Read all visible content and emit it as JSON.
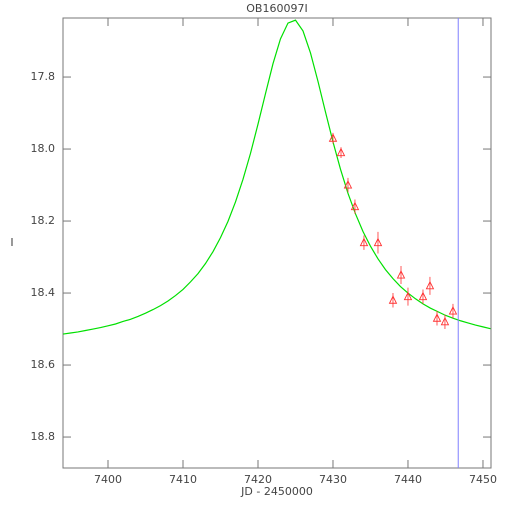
{
  "chart_data": {
    "type": "scatter",
    "title": "OB160097I",
    "xlabel": "JD - 2450000",
    "ylabel": "I",
    "xlim": [
      7394,
      7451.07
    ],
    "ylim": [
      18.886,
      17.636
    ],
    "xticks": [
      7400,
      7410,
      7420,
      7430,
      7440,
      7450
    ],
    "yticks": [
      17.8,
      {
        "value": 18,
        "label": "18.0"
      },
      18.2,
      18.4,
      18.6,
      18.8
    ],
    "points": {
      "color": "#ff3030",
      "x": [
        7430.0,
        7431.07,
        7432.0,
        7432.93,
        7434.13,
        7436.0,
        7438.0,
        7439.07,
        7440.0,
        7442.0,
        7442.93,
        7443.87,
        7444.93,
        7446.0
      ],
      "values": [
        17.97,
        18.01,
        18.1,
        18.16,
        18.26,
        18.26,
        18.42,
        18.35,
        18.41,
        18.41,
        18.38,
        18.47,
        18.48,
        18.45
      ],
      "errors": [
        0.015,
        0.015,
        0.02,
        0.02,
        0.02,
        0.03,
        0.02,
        0.025,
        0.025,
        0.02,
        0.025,
        0.02,
        0.02,
        0.02
      ]
    },
    "model": {
      "color": "#00e000",
      "x": [
        7394,
        7395,
        7396,
        7397,
        7398,
        7399,
        7400,
        7401,
        7402,
        7403,
        7404,
        7405,
        7406,
        7407,
        7408,
        7409,
        7410,
        7411,
        7412,
        7413,
        7414,
        7415,
        7416,
        7417,
        7418,
        7419,
        7420,
        7421,
        7422,
        7423,
        7424,
        7425,
        7426,
        7427,
        7428,
        7429,
        7430,
        7431,
        7432,
        7433,
        7434,
        7435,
        7436,
        7437,
        7438,
        7439,
        7440,
        7441,
        7442,
        7443,
        7444,
        7445,
        7446,
        7447,
        7448,
        7449,
        7450,
        7451
      ],
      "values": [
        18.514,
        18.511,
        18.508,
        18.504,
        18.5,
        18.496,
        18.491,
        18.486,
        18.479,
        18.473,
        18.465,
        18.456,
        18.446,
        18.435,
        18.422,
        18.407,
        18.39,
        18.369,
        18.346,
        18.318,
        18.285,
        18.246,
        18.201,
        18.147,
        18.084,
        18.012,
        17.931,
        17.846,
        17.763,
        17.694,
        17.65,
        17.642,
        17.672,
        17.733,
        17.812,
        17.897,
        17.98,
        18.056,
        18.123,
        18.18,
        18.229,
        18.27,
        18.305,
        18.335,
        18.36,
        18.382,
        18.4,
        18.416,
        18.43,
        18.442,
        18.452,
        18.462,
        18.47,
        18.477,
        18.483,
        18.489,
        18.494,
        18.499
      ]
    },
    "vline": {
      "x": 7446.7,
      "color": "#8080ff"
    }
  }
}
